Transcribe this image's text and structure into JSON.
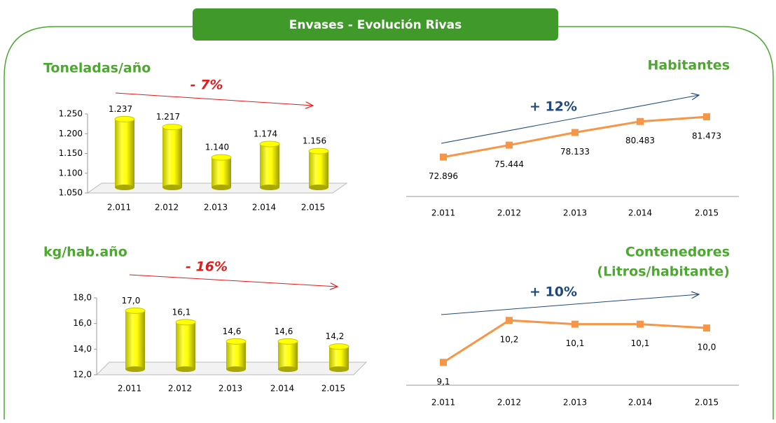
{
  "title": "Envases - Evolución Rivas",
  "chart_data": [
    {
      "type": "bar",
      "title": [
        "Toneladas/año"
      ],
      "annotation": "- 7%",
      "categories": [
        "2.011",
        "2.012",
        "2.013",
        "2.014",
        "2.015"
      ],
      "values": [
        1237,
        1217,
        1140,
        1174,
        1156
      ],
      "value_labels": [
        "1.237",
        "1.217",
        "1.140",
        "1.174",
        "1.156"
      ],
      "color": "#ffff00",
      "ylim": [
        1050,
        1250
      ],
      "yticks": [
        {
          "value": 1050,
          "label": "1.050"
        },
        {
          "value": 1100,
          "label": "1.100"
        },
        {
          "value": 1150,
          "label": "1.150"
        },
        {
          "value": 1200,
          "label": "1.200"
        },
        {
          "value": 1250,
          "label": "1.250"
        }
      ]
    },
    {
      "type": "line",
      "title": [
        "Habitantes"
      ],
      "annotation": "+ 12%",
      "categories": [
        "2.011",
        "2.012",
        "2.013",
        "2.014",
        "2.015"
      ],
      "values": [
        72896,
        75444,
        78133,
        80483,
        81473
      ],
      "value_labels": [
        "72.896",
        "75.444",
        "78.133",
        "80.483",
        "81.473"
      ],
      "color": "#f79646",
      "ylim": [
        64500,
        87000
      ]
    },
    {
      "type": "bar",
      "title": [
        "kg/hab.año"
      ],
      "annotation": "- 16%",
      "categories": [
        "2.011",
        "2.012",
        "2.013",
        "2.014",
        "2.015"
      ],
      "values": [
        17.0,
        16.1,
        14.6,
        14.6,
        14.2
      ],
      "value_labels": [
        "17,0",
        "16,1",
        "14,6",
        "14,6",
        "14,2"
      ],
      "color": "#ffff00",
      "ylim": [
        12,
        18
      ],
      "yticks": [
        {
          "value": 12,
          "label": "12,0"
        },
        {
          "value": 14,
          "label": "14,0"
        },
        {
          "value": 16,
          "label": "16,0"
        },
        {
          "value": 18,
          "label": "18,0"
        }
      ]
    },
    {
      "type": "line",
      "title": [
        "Contenedores",
        "(Litros/habitante)"
      ],
      "annotation": "+ 10%",
      "categories": [
        "2.011",
        "2.012",
        "2.013",
        "2.014",
        "2.015"
      ],
      "values": [
        9.1,
        10.2,
        10.1,
        10.1,
        10.0
      ],
      "value_labels": [
        "9,1",
        "10,2",
        "10,1",
        "10,1",
        "10,0"
      ],
      "color": "#f79646",
      "ylim": [
        8.5,
        10.9
      ]
    }
  ]
}
